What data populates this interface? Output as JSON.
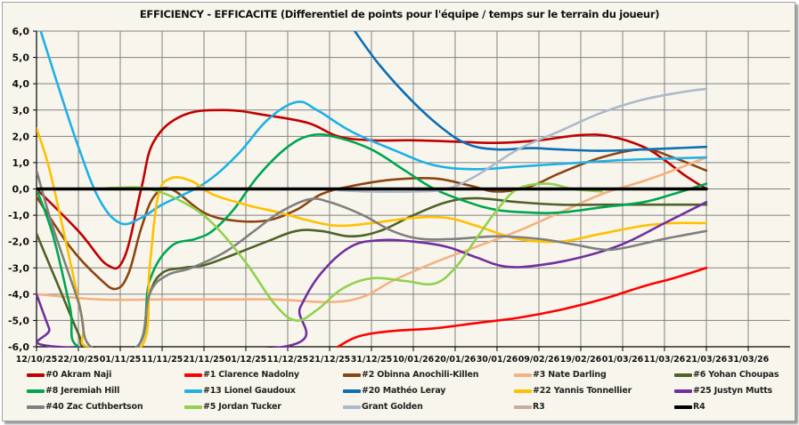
{
  "chart_data": {
    "type": "line",
    "title": "EFFICIENCY - EFFICACITE (Differentiel de points pour l'équipe / temps sur le terrain du joueur)",
    "xlabel": "",
    "ylabel": "",
    "ylim": [
      -6.0,
      6.0
    ],
    "yticks": [
      "6,0",
      "5,0",
      "4,0",
      "3,0",
      "2,0",
      "1,0",
      "0,0",
      "-1,0",
      "-2,0",
      "-3,0",
      "-4,0",
      "-5,0",
      "-6,0"
    ],
    "ytick_values": [
      6,
      5,
      4,
      3,
      2,
      1,
      0,
      -1,
      -2,
      -3,
      -4,
      -5,
      -6
    ],
    "xticks": [
      "12/10/25",
      "22/10/25",
      "01/11/25",
      "11/11/25",
      "21/11/25",
      "01/12/25",
      "11/12/25",
      "21/12/25",
      "31/12/25",
      "10/01/26",
      "20/01/26",
      "30/01/26",
      "09/02/26",
      "19/02/26",
      "01/03/26",
      "11/03/26",
      "21/03/26",
      "31/03/26"
    ],
    "x_unit": "days since 12/10/25",
    "xlim": [
      0,
      180
    ],
    "grid": true,
    "legend_position": "bottom",
    "series": [
      {
        "name": "#0 Akram Naji",
        "color": "#c00000",
        "points": [
          [
            0,
            0
          ],
          [
            10,
            -1.6
          ],
          [
            17,
            -2.9
          ],
          [
            21,
            -2.6
          ],
          [
            25,
            0
          ],
          [
            28,
            1.8
          ],
          [
            35,
            2.8
          ],
          [
            45,
            3.0
          ],
          [
            55,
            2.8
          ],
          [
            65,
            2.5
          ],
          [
            72,
            2.0
          ],
          [
            80,
            1.85
          ],
          [
            90,
            1.85
          ],
          [
            100,
            1.8
          ],
          [
            110,
            1.75
          ],
          [
            120,
            1.85
          ],
          [
            130,
            2.05
          ],
          [
            137,
            2.0
          ],
          [
            145,
            1.6
          ],
          [
            150,
            1.1
          ],
          [
            155,
            0.5
          ],
          [
            160,
            0.0
          ]
        ]
      },
      {
        "name": "#1 Clarence Nadolny",
        "color": "#ff0000",
        "points": [
          [
            72,
            -6.0
          ],
          [
            77,
            -5.6
          ],
          [
            85,
            -5.4
          ],
          [
            95,
            -5.3
          ],
          [
            105,
            -5.1
          ],
          [
            115,
            -4.9
          ],
          [
            125,
            -4.6
          ],
          [
            135,
            -4.2
          ],
          [
            145,
            -3.7
          ],
          [
            152,
            -3.4
          ],
          [
            160,
            -3.0
          ]
        ]
      },
      {
        "name": "#2 Obinna Anochili-Killen",
        "color": "#8b4513",
        "points": [
          [
            0,
            -0.3
          ],
          [
            8,
            -2.2
          ],
          [
            15,
            -3.4
          ],
          [
            19,
            -3.8
          ],
          [
            22,
            -3.2
          ],
          [
            25,
            -1.5
          ],
          [
            28,
            -0.3
          ],
          [
            32,
            0.0
          ],
          [
            40,
            -0.9
          ],
          [
            47,
            -1.2
          ],
          [
            55,
            -1.2
          ],
          [
            62,
            -0.8
          ],
          [
            68,
            -0.2
          ],
          [
            75,
            0.1
          ],
          [
            85,
            0.35
          ],
          [
            95,
            0.4
          ],
          [
            103,
            0.15
          ],
          [
            110,
            -0.1
          ],
          [
            118,
            0.1
          ],
          [
            125,
            0.6
          ],
          [
            135,
            1.2
          ],
          [
            145,
            1.5
          ],
          [
            152,
            1.2
          ],
          [
            160,
            0.7
          ]
        ]
      },
      {
        "name": "#3 Nate Darling",
        "color": "#f4b183",
        "points": [
          [
            0,
            -4.0
          ],
          [
            15,
            -4.2
          ],
          [
            30,
            -4.2
          ],
          [
            45,
            -4.2
          ],
          [
            57,
            -4.2
          ],
          [
            70,
            -4.3
          ],
          [
            78,
            -4.1
          ],
          [
            85,
            -3.5
          ],
          [
            95,
            -2.8
          ],
          [
            105,
            -2.2
          ],
          [
            115,
            -1.6
          ],
          [
            125,
            -0.9
          ],
          [
            135,
            -0.2
          ],
          [
            145,
            0.3
          ],
          [
            152,
            0.7
          ],
          [
            160,
            1.2
          ]
        ]
      },
      {
        "name": "#6 Yohan Choupas",
        "color": "#4f6228",
        "points": [
          [
            0,
            -1.7
          ],
          [
            5,
            -3.6
          ],
          [
            10,
            -5.5
          ],
          [
            12,
            -6.0
          ],
          [
            24,
            -6.0
          ],
          [
            27,
            -4.0
          ],
          [
            30,
            -3.2
          ],
          [
            35,
            -3.0
          ],
          [
            40,
            -2.9
          ],
          [
            47,
            -2.5
          ],
          [
            55,
            -2.0
          ],
          [
            62,
            -1.6
          ],
          [
            68,
            -1.6
          ],
          [
            75,
            -1.8
          ],
          [
            82,
            -1.6
          ],
          [
            90,
            -1.0
          ],
          [
            98,
            -0.5
          ],
          [
            105,
            -0.35
          ],
          [
            115,
            -0.5
          ],
          [
            125,
            -0.6
          ],
          [
            135,
            -0.6
          ],
          [
            145,
            -0.6
          ],
          [
            160,
            -0.6
          ]
        ]
      },
      {
        "name": "#8 Jeremiah Hill",
        "color": "#00a550",
        "points": [
          [
            0,
            0
          ],
          [
            4,
            -1.8
          ],
          [
            8,
            -4.5
          ],
          [
            10,
            -6.0
          ],
          [
            24,
            -6.0
          ],
          [
            27,
            -3.5
          ],
          [
            32,
            -2.2
          ],
          [
            38,
            -1.9
          ],
          [
            42,
            -1.6
          ],
          [
            47,
            -0.8
          ],
          [
            53,
            0.5
          ],
          [
            60,
            1.6
          ],
          [
            66,
            2.05
          ],
          [
            72,
            1.95
          ],
          [
            80,
            1.5
          ],
          [
            88,
            0.7
          ],
          [
            95,
            0.0
          ],
          [
            103,
            -0.5
          ],
          [
            110,
            -0.8
          ],
          [
            118,
            -0.9
          ],
          [
            125,
            -0.9
          ],
          [
            135,
            -0.7
          ],
          [
            145,
            -0.5
          ],
          [
            152,
            -0.2
          ],
          [
            160,
            0.2
          ]
        ]
      },
      {
        "name": "#13 Lionel Gaudoux",
        "color": "#1fb0e6",
        "points": [
          [
            1,
            6.0
          ],
          [
            5,
            4.0
          ],
          [
            10,
            1.6
          ],
          [
            15,
            -0.4
          ],
          [
            20,
            -1.3
          ],
          [
            25,
            -1.1
          ],
          [
            30,
            -0.6
          ],
          [
            40,
            0.2
          ],
          [
            48,
            1.3
          ],
          [
            55,
            2.6
          ],
          [
            62,
            3.3
          ],
          [
            67,
            3.0
          ],
          [
            75,
            2.2
          ],
          [
            85,
            1.5
          ],
          [
            95,
            0.9
          ],
          [
            105,
            0.75
          ],
          [
            115,
            0.85
          ],
          [
            130,
            1.0
          ],
          [
            140,
            1.1
          ],
          [
            150,
            1.15
          ],
          [
            160,
            1.2
          ]
        ]
      },
      {
        "name": "#20 Mathéo Leray",
        "color": "#0d6eb5",
        "points": [
          [
            76,
            6.0
          ],
          [
            82,
            4.7
          ],
          [
            90,
            3.3
          ],
          [
            97,
            2.3
          ],
          [
            103,
            1.7
          ],
          [
            110,
            1.5
          ],
          [
            118,
            1.55
          ],
          [
            125,
            1.5
          ],
          [
            135,
            1.45
          ],
          [
            145,
            1.5
          ],
          [
            160,
            1.6
          ]
        ]
      },
      {
        "name": "#22 Yannis Tonnellier",
        "color": "#ffc000",
        "points": [
          [
            0,
            2.3
          ],
          [
            3,
            0.8
          ],
          [
            7,
            -2.0
          ],
          [
            11,
            -5.0
          ],
          [
            12,
            -6.0
          ],
          [
            25,
            -6.0
          ],
          [
            27,
            -3.0
          ],
          [
            29,
            -0.3
          ],
          [
            32,
            0.4
          ],
          [
            37,
            0.3
          ],
          [
            42,
            -0.2
          ],
          [
            50,
            -0.6
          ],
          [
            58,
            -0.9
          ],
          [
            65,
            -1.2
          ],
          [
            72,
            -1.4
          ],
          [
            80,
            -1.3
          ],
          [
            90,
            -1.1
          ],
          [
            98,
            -1.1
          ],
          [
            105,
            -1.4
          ],
          [
            115,
            -1.9
          ],
          [
            125,
            -2.0
          ],
          [
            135,
            -1.7
          ],
          [
            145,
            -1.4
          ],
          [
            152,
            -1.3
          ],
          [
            160,
            -1.3
          ]
        ]
      },
      {
        "name": "#25 Justyn Mutts",
        "color": "#7030a0",
        "points": [
          [
            0,
            -4.0
          ],
          [
            3,
            -5.3
          ],
          [
            5,
            -6.0
          ],
          [
            59,
            -6.0
          ],
          [
            63,
            -4.5
          ],
          [
            68,
            -3.2
          ],
          [
            75,
            -2.2
          ],
          [
            82,
            -1.95
          ],
          [
            90,
            -2.0
          ],
          [
            98,
            -2.2
          ],
          [
            105,
            -2.6
          ],
          [
            112,
            -2.95
          ],
          [
            120,
            -2.9
          ],
          [
            130,
            -2.6
          ],
          [
            140,
            -2.1
          ],
          [
            150,
            -1.3
          ],
          [
            160,
            -0.5
          ]
        ]
      },
      {
        "name": "#40 Zac Cuthbertson",
        "color": "#808080",
        "points": [
          [
            0,
            0.7
          ],
          [
            4,
            -1.5
          ],
          [
            10,
            -4.3
          ],
          [
            13,
            -6.0
          ],
          [
            24,
            -6.0
          ],
          [
            27,
            -4.0
          ],
          [
            31,
            -3.3
          ],
          [
            37,
            -3.0
          ],
          [
            45,
            -2.4
          ],
          [
            52,
            -1.6
          ],
          [
            58,
            -0.9
          ],
          [
            65,
            -0.4
          ],
          [
            70,
            -0.5
          ],
          [
            78,
            -1.0
          ],
          [
            85,
            -1.6
          ],
          [
            92,
            -1.9
          ],
          [
            100,
            -1.9
          ],
          [
            110,
            -1.8
          ],
          [
            120,
            -1.9
          ],
          [
            128,
            -2.1
          ],
          [
            135,
            -2.3
          ],
          [
            140,
            -2.25
          ],
          [
            150,
            -1.9
          ],
          [
            160,
            -1.6
          ]
        ]
      },
      {
        "name": "#5 Jordan Tucker",
        "color": "#92d050",
        "points": [
          [
            15,
            0.0
          ],
          [
            20,
            0.05
          ],
          [
            27,
            0.0
          ],
          [
            35,
            -0.5
          ],
          [
            42,
            -1.3
          ],
          [
            50,
            -2.8
          ],
          [
            57,
            -4.4
          ],
          [
            62,
            -5.0
          ],
          [
            67,
            -4.6
          ],
          [
            73,
            -3.8
          ],
          [
            80,
            -3.4
          ],
          [
            88,
            -3.5
          ],
          [
            95,
            -3.6
          ],
          [
            100,
            -3.0
          ],
          [
            105,
            -1.9
          ],
          [
            110,
            -0.8
          ],
          [
            115,
            0.0
          ],
          [
            122,
            0.2
          ],
          [
            128,
            0.0
          ],
          [
            135,
            -0.1
          ]
        ]
      },
      {
        "name": "Grant Golden",
        "color": "#adb9ca",
        "points": [
          [
            72,
            -0.05
          ],
          [
            80,
            -0.1
          ],
          [
            90,
            -0.1
          ],
          [
            98,
            0.0
          ],
          [
            105,
            0.5
          ],
          [
            115,
            1.5
          ],
          [
            125,
            2.2
          ],
          [
            135,
            2.9
          ],
          [
            145,
            3.4
          ],
          [
            155,
            3.7
          ],
          [
            160,
            3.8
          ]
        ]
      },
      {
        "name": "R3",
        "color": "#c9aaa0",
        "points": []
      },
      {
        "name": "R4",
        "color": "#000000",
        "points": [
          [
            0,
            0
          ],
          [
            160,
            0
          ]
        ]
      }
    ]
  }
}
